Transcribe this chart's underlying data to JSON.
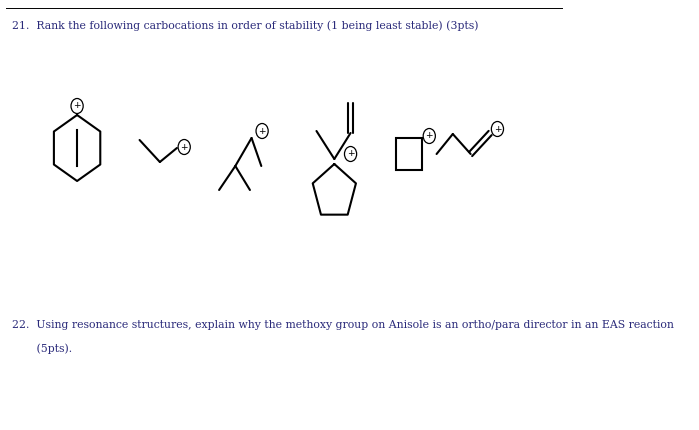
{
  "title_q21": "21.  Rank the following carbocations in order of stability (1 being least stable) (3pts)",
  "title_q22_line1": "22.  Using resonance structures, explain why the methoxy group on Anisole is an ortho/para director in an EAS reaction",
  "title_q22_line2": "       (5pts).",
  "bg_color": "#ffffff",
  "text_color": "#2a2a7a",
  "line_color": "#000000",
  "line_width": 1.5,
  "fig_width": 6.99,
  "fig_height": 4.3,
  "dpi": 100
}
